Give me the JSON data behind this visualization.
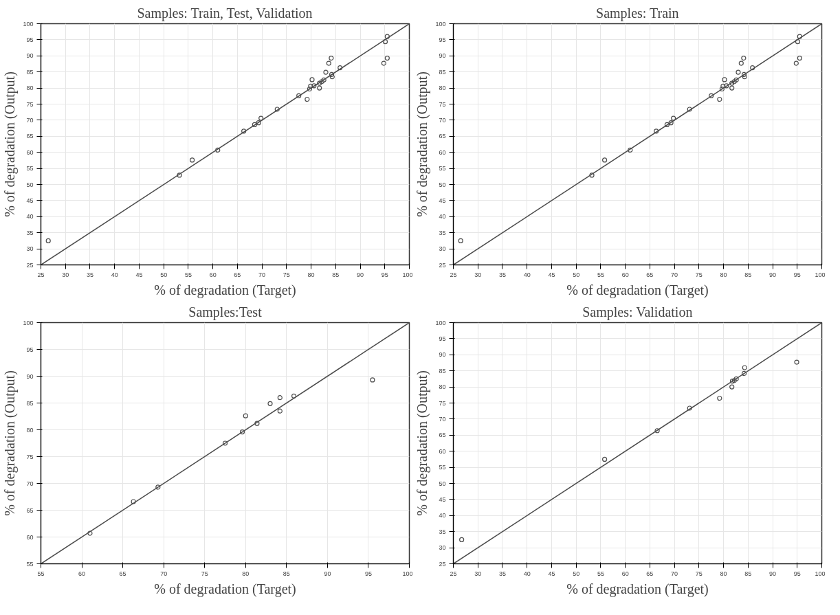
{
  "chart_data": [
    {
      "type": "scatter",
      "title": "Samples: Train, Test, Validation",
      "xlabel": "% of degradation (Target)",
      "ylabel": "% of degradation (Output)",
      "xlim": [
        25,
        100
      ],
      "ylim": [
        25,
        100
      ],
      "xticks": [
        25,
        30,
        35,
        40,
        45,
        50,
        55,
        60,
        65,
        70,
        75,
        80,
        85,
        90,
        95,
        100
      ],
      "yticks": [
        25,
        30,
        35,
        40,
        45,
        50,
        55,
        60,
        65,
        70,
        75,
        80,
        85,
        90,
        95,
        100
      ],
      "grid": true,
      "series": [
        {
          "marker": "circle",
          "color": "#4d4d4d",
          "x": [
            26.5,
            53.2,
            55.8,
            61,
            66.3,
            68.5,
            69.3,
            69.8,
            73.1,
            77.5,
            79.2,
            79.7,
            79.9,
            80.2,
            80.6,
            81.7,
            81.7,
            82.2,
            82.6,
            83,
            83.6,
            84.1,
            84.2,
            84.3,
            85.9,
            94.8,
            95.1,
            95.5,
            95.5
          ],
          "values": [
            32.5,
            52.9,
            57.6,
            60.7,
            66.6,
            68.6,
            69.2,
            70.6,
            73.4,
            77.6,
            76.5,
            79.7,
            80.6,
            82.6,
            80.7,
            80,
            81.5,
            82,
            82.5,
            84.9,
            87.7,
            89.3,
            84.2,
            83.5,
            86.3,
            87.7,
            94.4,
            96,
            89.3
          ]
        },
        {
          "type": "line",
          "marker": "none",
          "color": "#4d4d4d",
          "x": [
            25,
            100
          ],
          "values": [
            25,
            100
          ]
        }
      ]
    },
    {
      "type": "scatter",
      "title": "Samples: Train",
      "xlabel": "% of degradation (Target)",
      "ylabel": "% of degradation (Output)",
      "xlim": [
        25,
        100
      ],
      "ylim": [
        25,
        100
      ],
      "xticks": [
        25,
        30,
        35,
        40,
        45,
        50,
        55,
        60,
        65,
        70,
        75,
        80,
        85,
        90,
        95,
        100
      ],
      "yticks": [
        25,
        30,
        35,
        40,
        45,
        50,
        55,
        60,
        65,
        70,
        75,
        80,
        85,
        90,
        95,
        100
      ],
      "grid": true,
      "series": [
        {
          "marker": "circle",
          "color": "#4d4d4d",
          "x": [
            26.5,
            53.2,
            55.8,
            61,
            66.3,
            68.5,
            69.3,
            69.8,
            73.1,
            77.5,
            79.2,
            79.7,
            79.9,
            80.2,
            80.6,
            81.7,
            81.7,
            82.2,
            82.6,
            83,
            83.6,
            84.1,
            84.2,
            84.3,
            85.9,
            94.8,
            95.1,
            95.5,
            95.5
          ],
          "values": [
            32.5,
            52.9,
            57.6,
            60.7,
            66.6,
            68.6,
            69.2,
            70.6,
            73.4,
            77.6,
            76.5,
            79.7,
            80.6,
            82.6,
            80.7,
            80,
            81.5,
            82,
            82.5,
            84.9,
            87.7,
            89.3,
            84.2,
            83.5,
            86.3,
            87.7,
            94.4,
            96,
            89.3
          ]
        },
        {
          "type": "line",
          "marker": "none",
          "color": "#4d4d4d",
          "x": [
            25,
            100
          ],
          "values": [
            25,
            100
          ]
        }
      ]
    },
    {
      "type": "scatter",
      "title": "Samples:Test",
      "xlabel": "% of degradation (Target)",
      "ylabel": "% of degradation (Output)",
      "xlim": [
        55,
        100
      ],
      "ylim": [
        55,
        100
      ],
      "xticks": [
        55,
        60,
        65,
        70,
        75,
        80,
        85,
        90,
        95,
        100
      ],
      "yticks": [
        55,
        60,
        65,
        70,
        75,
        80,
        85,
        90,
        95,
        100
      ],
      "grid": true,
      "series": [
        {
          "marker": "circle",
          "color": "#4d4d4d",
          "x": [
            61,
            66.3,
            69.3,
            77.5,
            79.6,
            80,
            81.4,
            83,
            84.2,
            84.2,
            85.9,
            95.5
          ],
          "values": [
            60.7,
            66.6,
            69.3,
            77.5,
            79.6,
            82.6,
            81.2,
            84.9,
            86,
            83.5,
            86.3,
            89.3
          ]
        },
        {
          "type": "line",
          "marker": "none",
          "color": "#4d4d4d",
          "x": [
            55,
            100
          ],
          "values": [
            55,
            100
          ]
        }
      ]
    },
    {
      "type": "scatter",
      "title": "Samples: Validation",
      "xlabel": "% of degradation (Target)",
      "ylabel": "% of degradation (Output)",
      "xlim": [
        25,
        100
      ],
      "ylim": [
        25,
        100
      ],
      "xticks": [
        25,
        30,
        35,
        40,
        45,
        50,
        55,
        60,
        65,
        70,
        75,
        80,
        85,
        90,
        95,
        100
      ],
      "yticks": [
        25,
        30,
        35,
        40,
        45,
        50,
        55,
        60,
        65,
        70,
        75,
        80,
        85,
        90,
        95,
        100
      ],
      "grid": true,
      "series": [
        {
          "marker": "circle",
          "color": "#4d4d4d",
          "x": [
            26.7,
            55.8,
            66.5,
            73.1,
            79.2,
            81.7,
            81.8,
            82.2,
            82.6,
            84.2,
            84.3,
            94.9
          ],
          "values": [
            32.5,
            57.5,
            66.4,
            73.4,
            76.5,
            80,
            81.8,
            82,
            82.5,
            84.2,
            86,
            87.7
          ]
        },
        {
          "type": "line",
          "marker": "none",
          "color": "#4d4d4d",
          "x": [
            25,
            100
          ],
          "values": [
            25,
            100
          ]
        }
      ]
    }
  ]
}
